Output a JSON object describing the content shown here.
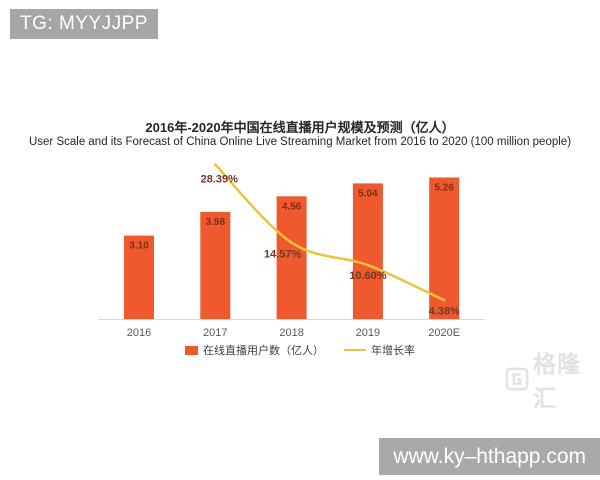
{
  "badges": {
    "tg": "TG: MYYJJPP",
    "url": "www.ky–hthapp.com"
  },
  "chart_data": {
    "type": "bar",
    "title_zh": "2016年-2020年中国在线直播用户规模及预测（亿人）",
    "title_en": "User Scale and its Forecast of China Online Live Streaming Market from 2016 to 2020 (100 million people)",
    "categories": [
      "2016",
      "2017",
      "2018",
      "2019",
      "2020E"
    ],
    "series": [
      {
        "name": "在线直播用户数（亿人）",
        "type": "bar",
        "values": [
          3.1,
          3.98,
          4.56,
          5.04,
          5.26
        ],
        "color": "#f0582e",
        "label_color": "#7d2e17"
      },
      {
        "name": "年增长率",
        "type": "line",
        "values": [
          null,
          28.39,
          14.57,
          10.6,
          4.38
        ],
        "unit": "%",
        "color": "#edc23c",
        "label_color": "#6e3a28"
      }
    ],
    "bar_labels": [
      "3.10",
      "3.98",
      "4.56",
      "5.04",
      "5.26"
    ],
    "line_labels": [
      "28.39%",
      "14.57%",
      "10.60%",
      "4.38%"
    ],
    "ylabel": "",
    "xlabel": "",
    "ylim_bar": [
      0,
      6
    ],
    "gridlines": false,
    "y_axis_visible": false,
    "legend_position": "bottom",
    "axis_color": "#d9d9d9",
    "tick_label_color": "#595959"
  },
  "watermark": {
    "text": "格隆汇"
  }
}
